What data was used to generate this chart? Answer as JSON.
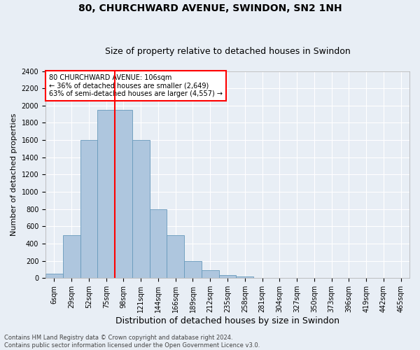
{
  "title": "80, CHURCHWARD AVENUE, SWINDON, SN2 1NH",
  "subtitle": "Size of property relative to detached houses in Swindon",
  "xlabel": "Distribution of detached houses by size in Swindon",
  "ylabel": "Number of detached properties",
  "footer_line1": "Contains HM Land Registry data © Crown copyright and database right 2024.",
  "footer_line2": "Contains public sector information licensed under the Open Government Licence v3.0.",
  "bar_labels": [
    "6sqm",
    "29sqm",
    "52sqm",
    "75sqm",
    "98sqm",
    "121sqm",
    "144sqm",
    "166sqm",
    "189sqm",
    "212sqm",
    "235sqm",
    "258sqm",
    "281sqm",
    "304sqm",
    "327sqm",
    "350sqm",
    "373sqm",
    "396sqm",
    "419sqm",
    "442sqm",
    "465sqm"
  ],
  "bar_values": [
    50,
    500,
    1600,
    1950,
    1950,
    1600,
    800,
    500,
    200,
    90,
    35,
    20,
    5,
    2,
    2,
    0,
    0,
    0,
    0,
    0,
    0
  ],
  "bar_color": "#aec6de",
  "bar_edgecolor": "#6699bb",
  "vline_color": "red",
  "vline_index": 4,
  "annotation_text": "80 CHURCHWARD AVENUE: 106sqm\n← 36% of detached houses are smaller (2,649)\n63% of semi-detached houses are larger (4,557) →",
  "annotation_box_edgecolor": "red",
  "ylim": [
    0,
    2400
  ],
  "yticks": [
    0,
    200,
    400,
    600,
    800,
    1000,
    1200,
    1400,
    1600,
    1800,
    2000,
    2200,
    2400
  ],
  "background_color": "#e8eef5",
  "grid_color": "white",
  "title_fontsize": 10,
  "subtitle_fontsize": 9,
  "ylabel_fontsize": 8,
  "xlabel_fontsize": 9,
  "tick_fontsize": 7,
  "annot_fontsize": 7,
  "footer_fontsize": 6
}
